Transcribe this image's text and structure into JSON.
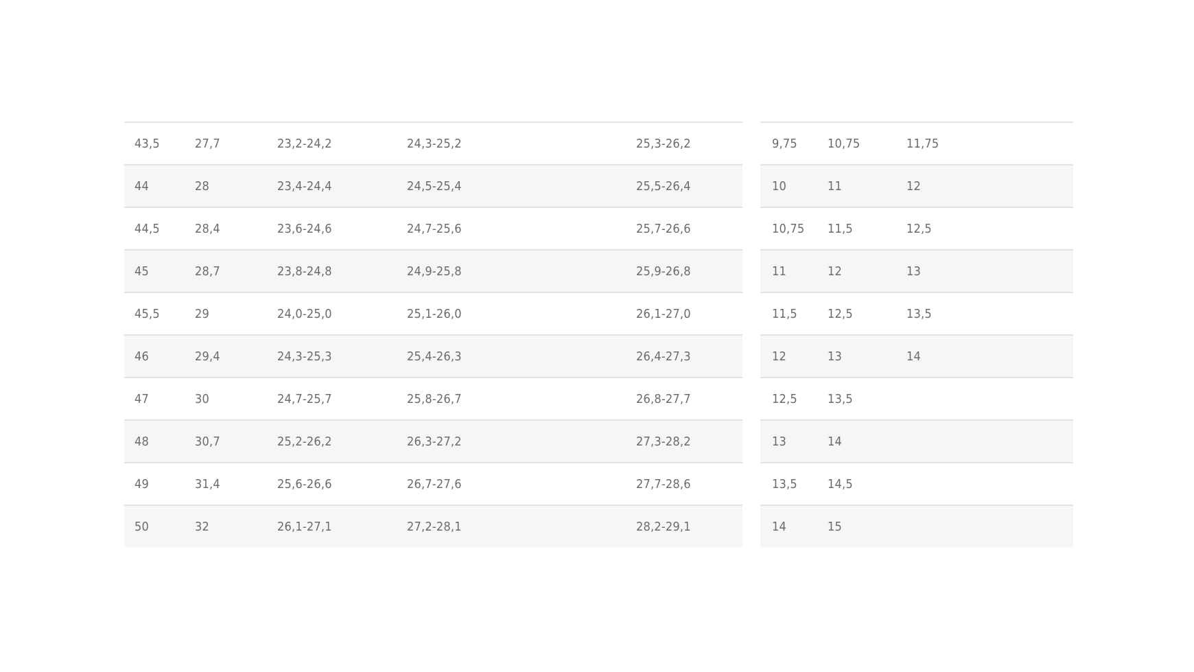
{
  "left_table": {
    "rows": [
      [
        "43,5",
        "27,7",
        "23,2-24,2",
        "24,3-25,2",
        "25,3-26,2"
      ],
      [
        "44",
        "28",
        "23,4-24,4",
        "24,5-25,4",
        "25,5-26,4"
      ],
      [
        "44,5",
        "28,4",
        "23,6-24,6",
        "24,7-25,6",
        "25,7-26,6"
      ],
      [
        "45",
        "28,7",
        "23,8-24,8",
        "24,9-25,8",
        "25,9-26,8"
      ],
      [
        "45,5",
        "29",
        "24,0-25,0",
        "25,1-26,0",
        "26,1-27,0"
      ],
      [
        "46",
        "29,4",
        "24,3-25,3",
        "25,4-26,3",
        "26,4-27,3"
      ],
      [
        "47",
        "30",
        "24,7-25,7",
        "25,8-26,7",
        "26,8-27,7"
      ],
      [
        "48",
        "30,7",
        "25,2-26,2",
        "26,3-27,2",
        "27,3-28,2"
      ],
      [
        "49",
        "31,4",
        "25,6-26,6",
        "26,7-27,6",
        "27,7-28,6"
      ],
      [
        "50",
        "32",
        "26,1-27,1",
        "27,2-28,1",
        "28,2-29,1"
      ]
    ]
  },
  "right_table": {
    "rows": [
      [
        "9,75",
        "10,75",
        "11,75"
      ],
      [
        "10",
        "11",
        "12"
      ],
      [
        "10,75",
        "11,5",
        "12,5"
      ],
      [
        "11",
        "12",
        "13"
      ],
      [
        "11,5",
        "12,5",
        "13,5"
      ],
      [
        "12",
        "13",
        "14"
      ],
      [
        "12,5",
        "13,5",
        ""
      ],
      [
        "13",
        "14",
        ""
      ],
      [
        "13,5",
        "14,5",
        ""
      ],
      [
        "14",
        "15",
        ""
      ]
    ]
  },
  "colors": {
    "text": "#6b6b6b",
    "stripe": "#f6f6f6",
    "divider": "#e3e3e3"
  }
}
